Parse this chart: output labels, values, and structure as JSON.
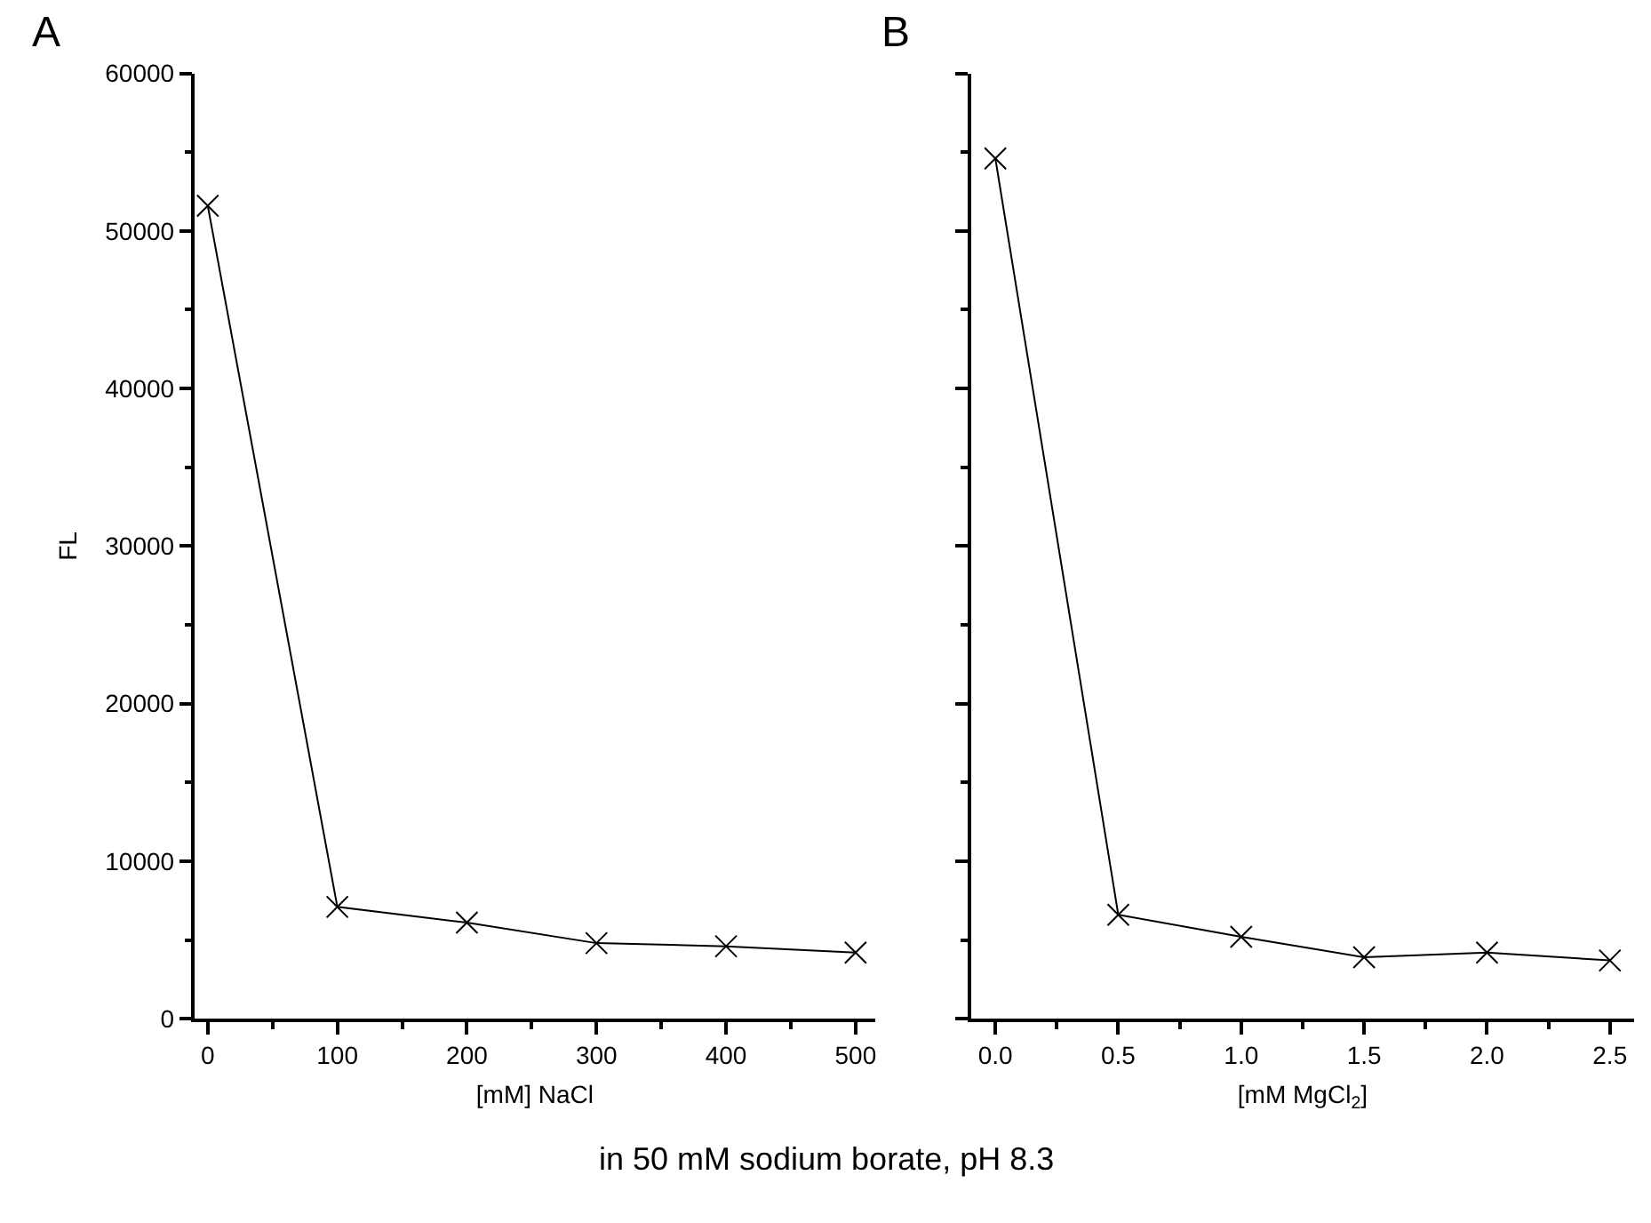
{
  "chart_data": [
    {
      "type": "line",
      "title": "A",
      "xlabel": "[mM] NaCl",
      "ylabel": "FL",
      "marker": "cross",
      "line_style": "solid",
      "x": [
        0,
        100,
        200,
        300,
        400,
        500
      ],
      "series": [
        {
          "color": "#000000",
          "values": [
            51600,
            7100,
            6100,
            4800,
            4600,
            4200
          ]
        }
      ],
      "xlim": [
        -10,
        515
      ],
      "xticks": [
        0,
        {
          "value": 50,
          "label": null
        },
        100,
        {
          "value": 150,
          "label": null
        },
        200,
        {
          "value": 250,
          "label": null
        },
        300,
        {
          "value": 350,
          "label": null
        },
        400,
        {
          "value": 450,
          "label": null
        },
        500
      ],
      "ylim": [
        0,
        60000
      ],
      "yticks": [
        0,
        {
          "value": 5000,
          "label": null
        },
        10000,
        {
          "value": 15000,
          "label": null
        },
        20000,
        {
          "value": 25000,
          "label": null
        },
        30000,
        {
          "value": 35000,
          "label": null
        },
        40000,
        {
          "value": 45000,
          "label": null
        },
        50000,
        {
          "value": 55000,
          "label": null
        },
        60000
      ],
      "annotations": [
        "in 50 mM sodium borate, pH 8.3"
      ]
    },
    {
      "type": "line",
      "title": "B",
      "xlabel": "[mM MgCl$_{2}$]",
      "marker": "cross",
      "line_style": "solid",
      "tick_labels": "x",
      "x": [
        0,
        0.5,
        1.0,
        1.5,
        2.0,
        2.5
      ],
      "series": [
        {
          "color": "#000000",
          "values": [
            54600,
            6600,
            5200,
            3900,
            4200,
            3700
          ]
        }
      ],
      "xlim": [
        -0.1,
        2.6
      ],
      "xticks": [
        {
          "value": 0,
          "label": "0.0"
        },
        {
          "value": 0.25,
          "label": null
        },
        {
          "value": 0.5,
          "label": "0.5"
        },
        {
          "value": 0.75,
          "label": null
        },
        {
          "value": 1,
          "label": "1.0"
        },
        {
          "value": 1.25,
          "label": null
        },
        {
          "value": 1.5,
          "label": "1.5"
        },
        {
          "value": 1.75,
          "label": null
        },
        {
          "value": 2,
          "label": "2.0"
        },
        {
          "value": 2.25,
          "label": null
        },
        {
          "value": 2.5,
          "label": "2.5"
        }
      ],
      "ylim": [
        0,
        60000
      ],
      "yticks": [
        0,
        {
          "value": 5000,
          "label": null
        },
        10000,
        {
          "value": 15000,
          "label": null
        },
        20000,
        {
          "value": 25000,
          "label": null
        },
        30000,
        {
          "value": 35000,
          "label": null
        },
        40000,
        {
          "value": 45000,
          "label": null
        },
        50000,
        {
          "value": 55000,
          "label": null
        },
        60000
      ]
    }
  ]
}
